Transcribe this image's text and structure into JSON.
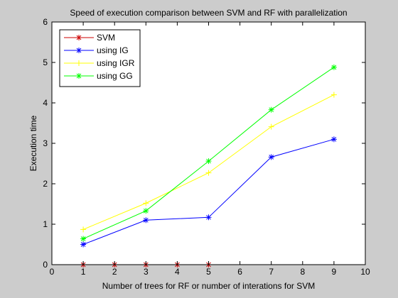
{
  "chart_data": {
    "type": "line",
    "title": "Speed of execution comparison between SVM and RF with parallelization",
    "xlabel": "Number of trees for RF or number of interations for SVM",
    "ylabel": "Execution time",
    "xlim": [
      0,
      10
    ],
    "ylim": [
      0,
      6
    ],
    "xticks": [
      "0",
      "1",
      "2",
      "3",
      "4",
      "5",
      "6",
      "7",
      "8",
      "9",
      "10"
    ],
    "yticks": [
      "0",
      "1",
      "2",
      "3",
      "4",
      "5",
      "6"
    ],
    "grid": false,
    "legend_position": "top-left",
    "series": [
      {
        "name": "SVM",
        "color": "#cc0000",
        "marker": "asterisk",
        "x": [
          1,
          2,
          3,
          4,
          5
        ],
        "y": [
          0.0,
          0.0,
          0.0,
          0.0,
          0.0
        ]
      },
      {
        "name": "using IG",
        "color": "#0000ff",
        "marker": "asterisk",
        "x": [
          1,
          3,
          5,
          7,
          9
        ],
        "y": [
          0.5,
          1.1,
          1.17,
          2.66,
          3.1
        ]
      },
      {
        "name": "using IGR",
        "color": "#ffff00",
        "marker": "plus",
        "x": [
          1,
          3,
          5,
          7,
          9
        ],
        "y": [
          0.87,
          1.52,
          2.27,
          3.41,
          4.2
        ]
      },
      {
        "name": "using GG",
        "color": "#00ff00",
        "marker": "asterisk",
        "x": [
          1,
          3,
          5,
          7,
          9
        ],
        "y": [
          0.64,
          1.33,
          2.56,
          3.83,
          4.88
        ]
      }
    ]
  }
}
